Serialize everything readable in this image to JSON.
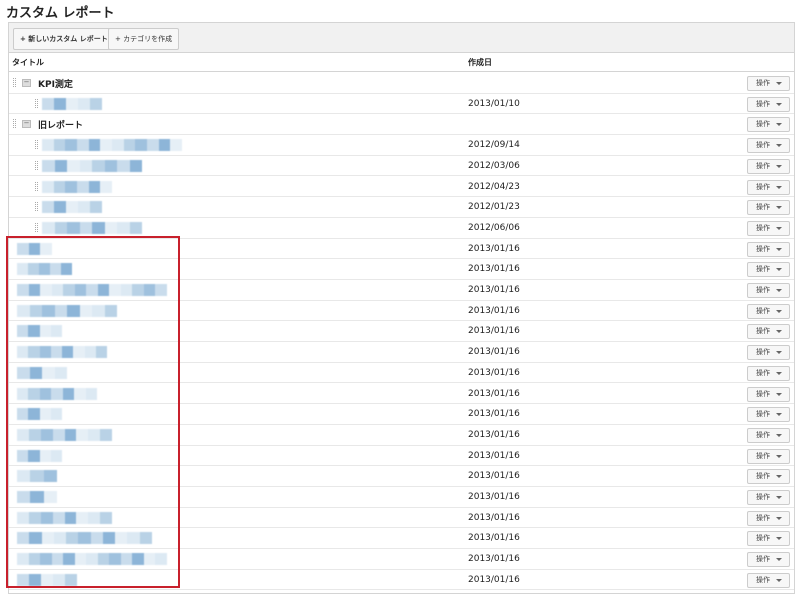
{
  "page_title": "カスタム レポート",
  "toolbar": {
    "new_report": "+ 新しいカスタム レポート",
    "new_category": "+ カテゴリを作成"
  },
  "columns": {
    "title": "タイトル",
    "created": "作成日"
  },
  "action_label": "操作",
  "highlight_color": "#c8202c",
  "rows": [
    {
      "type": "category",
      "label": "KPI測定",
      "collapse": "−"
    },
    {
      "type": "report",
      "indent": true,
      "date": "2013/01/10"
    },
    {
      "type": "category",
      "label": "旧レポート",
      "collapse": "−"
    },
    {
      "type": "report",
      "indent": true,
      "date": "2012/09/14"
    },
    {
      "type": "report",
      "indent": true,
      "date": "2012/03/06"
    },
    {
      "type": "report",
      "indent": true,
      "date": "2012/04/23"
    },
    {
      "type": "report",
      "indent": true,
      "date": "2012/01/23"
    },
    {
      "type": "report",
      "indent": true,
      "date": "2012/06/06"
    },
    {
      "type": "report",
      "date": "2013/01/16"
    },
    {
      "type": "report",
      "date": "2013/01/16"
    },
    {
      "type": "report",
      "date": "2013/01/16"
    },
    {
      "type": "report",
      "date": "2013/01/16"
    },
    {
      "type": "report",
      "date": "2013/01/16"
    },
    {
      "type": "report",
      "date": "2013/01/16"
    },
    {
      "type": "report",
      "date": "2013/01/16"
    },
    {
      "type": "report",
      "date": "2013/01/16"
    },
    {
      "type": "report",
      "date": "2013/01/16"
    },
    {
      "type": "report",
      "date": "2013/01/16"
    },
    {
      "type": "report",
      "date": "2013/01/16"
    },
    {
      "type": "report",
      "date": "2013/01/16"
    },
    {
      "type": "report",
      "date": "2013/01/16"
    },
    {
      "type": "report",
      "date": "2013/01/16"
    },
    {
      "type": "report",
      "date": "2013/01/16"
    },
    {
      "type": "report",
      "date": "2013/01/16"
    },
    {
      "type": "report",
      "date": "2013/01/16"
    }
  ]
}
